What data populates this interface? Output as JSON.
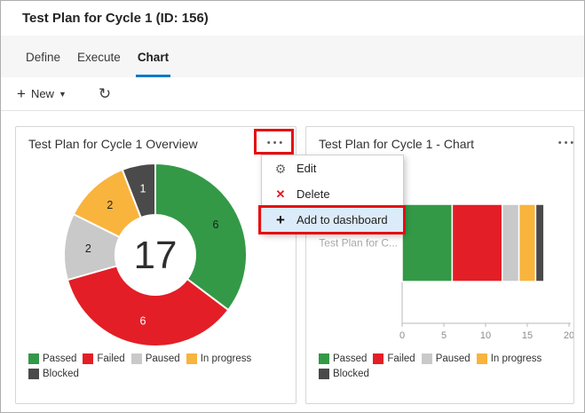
{
  "page": {
    "title": "Test Plan for Cycle 1 (ID: 156)"
  },
  "tabs": [
    {
      "label": "Define",
      "active": false
    },
    {
      "label": "Execute",
      "active": false
    },
    {
      "label": "Chart",
      "active": true
    }
  ],
  "toolbar": {
    "new_label": "New"
  },
  "icons": {
    "plus": "+",
    "caret_down": "▼",
    "refresh": "↻",
    "ellipsis": "•••",
    "gear": "⚙",
    "delete_x": "✕"
  },
  "colors": {
    "accent": "#0b79c7",
    "annotation_red": "#e60e11",
    "menu_highlight": "#dcebf9",
    "passed": "#339947",
    "failed": "#e31e26",
    "paused": "#c9c9c9",
    "in_progress": "#f8b43d",
    "blocked": "#4a4a4a"
  },
  "cards": {
    "left": {
      "title": "Test Plan for Cycle 1 Overview"
    },
    "right": {
      "title": "Test Plan for Cycle 1 - Chart"
    }
  },
  "context_menu": {
    "items": [
      {
        "label": "Edit",
        "icon": "gear-icon",
        "glyph": "⚙",
        "highlighted": false
      },
      {
        "label": "Delete",
        "icon": "delete-x-icon",
        "glyph": "✕",
        "highlighted": false
      },
      {
        "label": "Add to dashboard",
        "icon": "plus-icon",
        "glyph": "+",
        "highlighted": true
      }
    ]
  },
  "chart_data": [
    {
      "type": "pie",
      "subtype": "donut",
      "title": "Test Plan for Cycle 1 Overview",
      "center_label": "17",
      "total": 17,
      "legend_position": "bottom",
      "segments": [
        {
          "label": "Passed",
          "value": 6,
          "color": "#339947",
          "label_color": "#1e1e1e"
        },
        {
          "label": "Failed",
          "value": 6,
          "color": "#e31e26",
          "label_color": "#ffffff"
        },
        {
          "label": "Paused",
          "value": 2,
          "color": "#c9c9c9",
          "label_color": "#1e1e1e"
        },
        {
          "label": "In progress",
          "value": 2,
          "color": "#f8b43d",
          "label_color": "#1e1e1e"
        },
        {
          "label": "Blocked",
          "value": 1,
          "color": "#4a4a4a",
          "label_color": "#ffffff"
        }
      ]
    },
    {
      "type": "bar",
      "subtype": "horizontal-stacked",
      "title": "Test Plan for Cycle 1 - Chart",
      "category": "Test Plan for C...",
      "xlim": [
        0,
        20
      ],
      "x_ticks": [
        0,
        5,
        10,
        15,
        20
      ],
      "grid": false,
      "legend_position": "bottom",
      "series": [
        {
          "name": "Passed",
          "values": [
            6
          ],
          "color": "#339947"
        },
        {
          "name": "Failed",
          "values": [
            6
          ],
          "color": "#e31e26"
        },
        {
          "name": "Paused",
          "values": [
            2
          ],
          "color": "#c9c9c9"
        },
        {
          "name": "In progress",
          "values": [
            2
          ],
          "color": "#f8b43d"
        },
        {
          "name": "Blocked",
          "values": [
            1
          ],
          "color": "#4a4a4a"
        }
      ]
    }
  ]
}
